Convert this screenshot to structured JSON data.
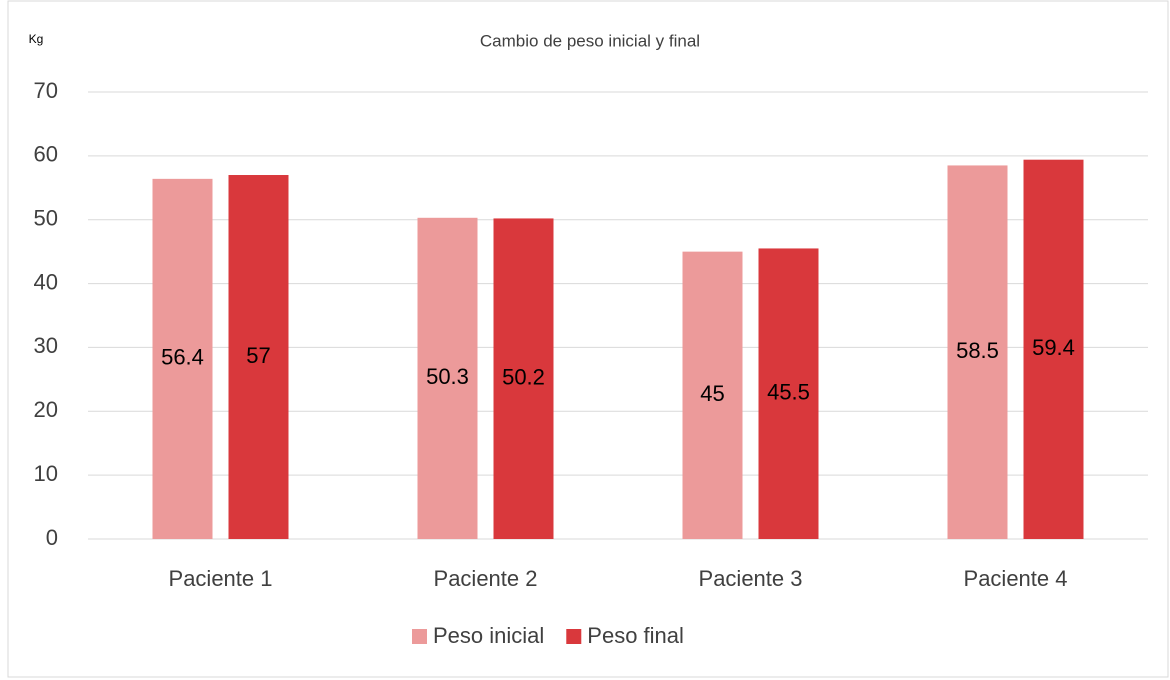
{
  "chart_data": {
    "type": "bar",
    "title": "Cambio de peso inicial y final",
    "y_label": "Kg",
    "categories": [
      "Paciente 1",
      "Paciente 2",
      "Paciente 3",
      "Paciente 4"
    ],
    "series": [
      {
        "name": "Peso inicial",
        "color": "#ec9a9a",
        "values": [
          56.4,
          50.3,
          45,
          58.5
        ]
      },
      {
        "name": "Peso final",
        "color": "#d9383c",
        "values": [
          57,
          50.2,
          45.5,
          59.4
        ]
      }
    ],
    "ylim": [
      0,
      70
    ],
    "yticks": [
      0,
      10,
      20,
      30,
      40,
      50,
      60,
      70
    ],
    "grid": true,
    "legend": "bottom"
  }
}
